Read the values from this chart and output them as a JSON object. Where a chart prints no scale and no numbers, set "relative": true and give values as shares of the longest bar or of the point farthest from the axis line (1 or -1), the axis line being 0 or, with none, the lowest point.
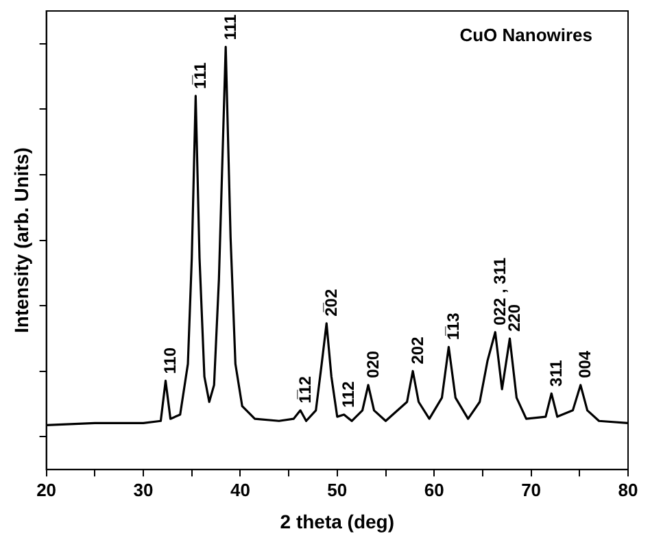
{
  "chart_data": {
    "type": "line",
    "title": "CuO Nanowires",
    "xlabel": "2 theta (deg)",
    "ylabel": "Intensity (arb. Units)",
    "relative": true,
    "xlim": [
      20,
      80
    ],
    "xticks": [
      20,
      {
        "value": 25,
        "label": null
      },
      30,
      {
        "value": 35,
        "label": null
      },
      40,
      {
        "value": 45,
        "label": null
      },
      50,
      {
        "value": 55,
        "label": null
      },
      60,
      {
        "value": 65,
        "label": null
      },
      70,
      {
        "value": 75,
        "label": null
      },
      80
    ],
    "grid": false,
    "legend": false,
    "marker": "none",
    "line_style": "solid",
    "series": [
      {
        "color": "#000000",
        "x": [
          20,
          25,
          30,
          31.8,
          32.3,
          32.8,
          33.8,
          34.6,
          35.0,
          35.4,
          35.8,
          36.3,
          36.8,
          37.3,
          37.8,
          38.5,
          39.0,
          39.5,
          40.2,
          41.5,
          44,
          45.5,
          46.2,
          46.8,
          47.8,
          48.4,
          48.9,
          49.4,
          50,
          50.7,
          51.5,
          52.6,
          53.2,
          53.8,
          55,
          57.2,
          57.8,
          58.4,
          59.5,
          60.8,
          61.5,
          62.2,
          63.5,
          64.7,
          65.5,
          66.3,
          67.0,
          67.8,
          68.5,
          69.5,
          71.5,
          72.1,
          72.7,
          74.3,
          75.1,
          75.8,
          77,
          80
        ],
        "values": [
          0.105,
          0.11,
          0.11,
          0.115,
          0.21,
          0.12,
          0.13,
          0.25,
          0.5,
          0.884,
          0.5,
          0.22,
          0.16,
          0.2,
          0.45,
          1.0,
          0.55,
          0.25,
          0.15,
          0.12,
          0.115,
          0.12,
          0.14,
          0.115,
          0.14,
          0.25,
          0.346,
          0.22,
          0.125,
          0.13,
          0.115,
          0.14,
          0.2,
          0.14,
          0.115,
          0.16,
          0.233,
          0.16,
          0.12,
          0.17,
          0.29,
          0.17,
          0.12,
          0.16,
          0.257,
          0.325,
          0.19,
          0.31,
          0.17,
          0.12,
          0.125,
          0.18,
          0.125,
          0.14,
          0.2,
          0.14,
          0.115,
          0.11
        ]
      }
    ],
    "annotations": [
      {
        "text": "110",
        "x": 32.3,
        "y": 0.21
      },
      {
        "text": "1̅11",
        "x": 35.4,
        "y": 0.884
      },
      {
        "text": "111",
        "x": 38.5,
        "y": 1.0
      },
      {
        "text": "1̅12",
        "x": 46.2,
        "y": 0.14
      },
      {
        "text": "2̅02",
        "x": 48.9,
        "y": 0.346
      },
      {
        "text": "112",
        "x": 50.7,
        "y": 0.13
      },
      {
        "text": "020",
        "x": 53.2,
        "y": 0.2
      },
      {
        "text": "202",
        "x": 57.8,
        "y": 0.233
      },
      {
        "text": "1̅13",
        "x": 61.5,
        "y": 0.29
      },
      {
        "text": "022 , 311",
        "x": 66.3,
        "y": 0.325
      },
      {
        "text": "220",
        "x": 67.8,
        "y": 0.31
      },
      {
        "text": "311",
        "x": 72.1,
        "y": 0.18
      },
      {
        "text": "004",
        "x": 75.1,
        "y": 0.2
      }
    ]
  }
}
